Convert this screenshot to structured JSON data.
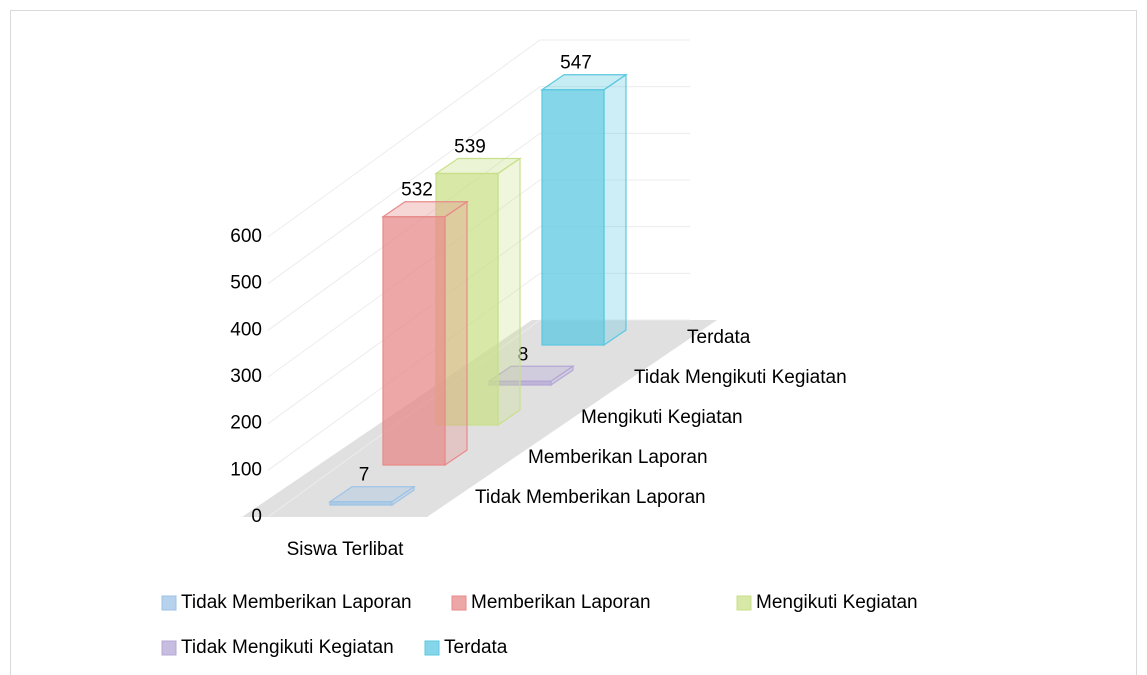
{
  "chart_data": {
    "type": "bar3d",
    "categories": [
      "Siswa Terlibat"
    ],
    "series": [
      {
        "name": "Tidak Memberikan Laporan",
        "color": "#9dc3e6",
        "values": [
          7
        ]
      },
      {
        "name": "Memberikan Laporan",
        "color": "#e88a8a",
        "values": [
          532
        ]
      },
      {
        "name": "Mengikuti Kegiatan",
        "color": "#c9e08a",
        "values": [
          539
        ]
      },
      {
        "name": "Tidak Mengikuti Kegiatan",
        "color": "#b4a7d6",
        "values": [
          8
        ]
      },
      {
        "name": "Terdata",
        "color": "#5bc8e0",
        "values": [
          547
        ]
      }
    ],
    "ylim": [
      0,
      600
    ],
    "yticks": [
      0,
      100,
      200,
      300,
      400,
      500,
      600
    ],
    "grid": true,
    "legend": "bottom"
  }
}
